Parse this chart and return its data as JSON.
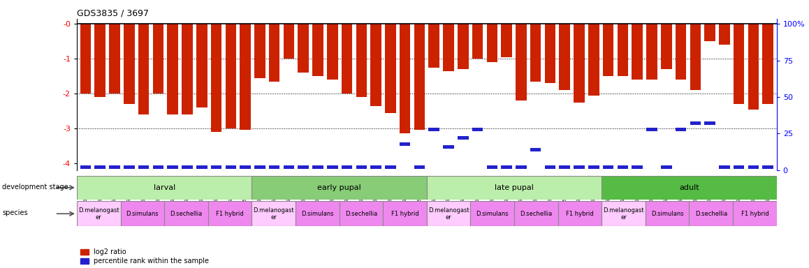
{
  "title": "GDS3835 / 3697",
  "samples": [
    "GSM435987",
    "GSM436078",
    "GSM436079",
    "GSM436091",
    "GSM436092",
    "GSM436093",
    "GSM436827",
    "GSM436828",
    "GSM436829",
    "GSM436839",
    "GSM436841",
    "GSM436842",
    "GSM436080",
    "GSM436083",
    "GSM436084",
    "GSM436094",
    "GSM436095",
    "GSM436096",
    "GSM436830",
    "GSM436831",
    "GSM436832",
    "GSM436848",
    "GSM436850",
    "GSM436852",
    "GSM436085",
    "GSM436086",
    "GSM436087",
    "GSM436097",
    "GSM436098",
    "GSM436099",
    "GSM436833",
    "GSM436834",
    "GSM436835",
    "GSM436854",
    "GSM436856",
    "GSM436857",
    "GSM436088",
    "GSM436089",
    "GSM436090",
    "GSM436100",
    "GSM436101",
    "GSM436102",
    "GSM436836",
    "GSM436837",
    "GSM436838",
    "GSM437041",
    "GSM437091",
    "GSM437092"
  ],
  "log2_values": [
    -2.0,
    -2.1,
    -2.0,
    -2.3,
    -2.6,
    -2.0,
    -2.6,
    -2.6,
    -2.4,
    -3.1,
    -3.0,
    -3.05,
    -1.55,
    -1.65,
    -1.0,
    -1.4,
    -1.5,
    -1.6,
    -2.0,
    -2.1,
    -2.35,
    -2.55,
    -3.15,
    -3.05,
    -1.25,
    -1.35,
    -1.3,
    -1.0,
    -1.1,
    -0.95,
    -2.2,
    -1.65,
    -1.7,
    -1.9,
    -2.25,
    -2.05,
    -1.5,
    -1.5,
    -1.6,
    -1.6,
    -1.3,
    -1.6,
    -1.9,
    -0.5,
    -0.6,
    -2.3,
    -2.45,
    -2.3
  ],
  "percentile_values": [
    2,
    2,
    2,
    2,
    2,
    2,
    2,
    2,
    2,
    2,
    2,
    2,
    2,
    2,
    2,
    2,
    2,
    2,
    2,
    2,
    2,
    2,
    18,
    2,
    28,
    16,
    22,
    28,
    2,
    2,
    2,
    14,
    2,
    2,
    2,
    2,
    2,
    2,
    2,
    28,
    2,
    28,
    32,
    32,
    2,
    2,
    2,
    2
  ],
  "dev_stages": [
    {
      "label": "larval",
      "start": 0,
      "end": 12,
      "color": "#bbeeaa"
    },
    {
      "label": "early pupal",
      "start": 12,
      "end": 24,
      "color": "#88cc77"
    },
    {
      "label": "late pupal",
      "start": 24,
      "end": 36,
      "color": "#bbeeaa"
    },
    {
      "label": "adult",
      "start": 36,
      "end": 48,
      "color": "#55bb44"
    }
  ],
  "species_groups": [
    {
      "label": "D.melanogast\ner",
      "start": 0,
      "end": 3,
      "color": "#ffccff"
    },
    {
      "label": "D.simulans",
      "start": 3,
      "end": 6,
      "color": "#ee88ee"
    },
    {
      "label": "D.sechellia",
      "start": 6,
      "end": 9,
      "color": "#ee88ee"
    },
    {
      "label": "F1 hybrid",
      "start": 9,
      "end": 12,
      "color": "#ee88ee"
    },
    {
      "label": "D.melanogast\ner",
      "start": 12,
      "end": 15,
      "color": "#ffccff"
    },
    {
      "label": "D.simulans",
      "start": 15,
      "end": 18,
      "color": "#ee88ee"
    },
    {
      "label": "D.sechellia",
      "start": 18,
      "end": 21,
      "color": "#ee88ee"
    },
    {
      "label": "F1 hybrid",
      "start": 21,
      "end": 24,
      "color": "#ee88ee"
    },
    {
      "label": "D.melanogast\ner",
      "start": 24,
      "end": 27,
      "color": "#ffccff"
    },
    {
      "label": "D.simulans",
      "start": 27,
      "end": 30,
      "color": "#ee88ee"
    },
    {
      "label": "D.sechellia",
      "start": 30,
      "end": 33,
      "color": "#ee88ee"
    },
    {
      "label": "F1 hybrid",
      "start": 33,
      "end": 36,
      "color": "#ee88ee"
    },
    {
      "label": "D.melanogast\ner",
      "start": 36,
      "end": 39,
      "color": "#ffccff"
    },
    {
      "label": "D.simulans",
      "start": 39,
      "end": 42,
      "color": "#ee88ee"
    },
    {
      "label": "D.sechellia",
      "start": 42,
      "end": 45,
      "color": "#ee88ee"
    },
    {
      "label": "F1 hybrid",
      "start": 45,
      "end": 48,
      "color": "#ee88ee"
    }
  ],
  "ylim_left": [
    -4.2,
    0.15
  ],
  "right_ticks": [
    0,
    25,
    50,
    75,
    100
  ],
  "right_tick_labels": [
    "0",
    "25",
    "50",
    "75",
    "100%"
  ],
  "bar_color": "#cc2200",
  "percentile_color": "#2222cc",
  "background_color": "#ffffff",
  "grid_lines": [
    -1,
    -2,
    -3
  ],
  "left_ticks": [
    0,
    -1,
    -2,
    -3,
    -4
  ],
  "left_tick_labels": [
    "-0",
    "-1",
    "-2",
    "-3",
    "-4"
  ]
}
